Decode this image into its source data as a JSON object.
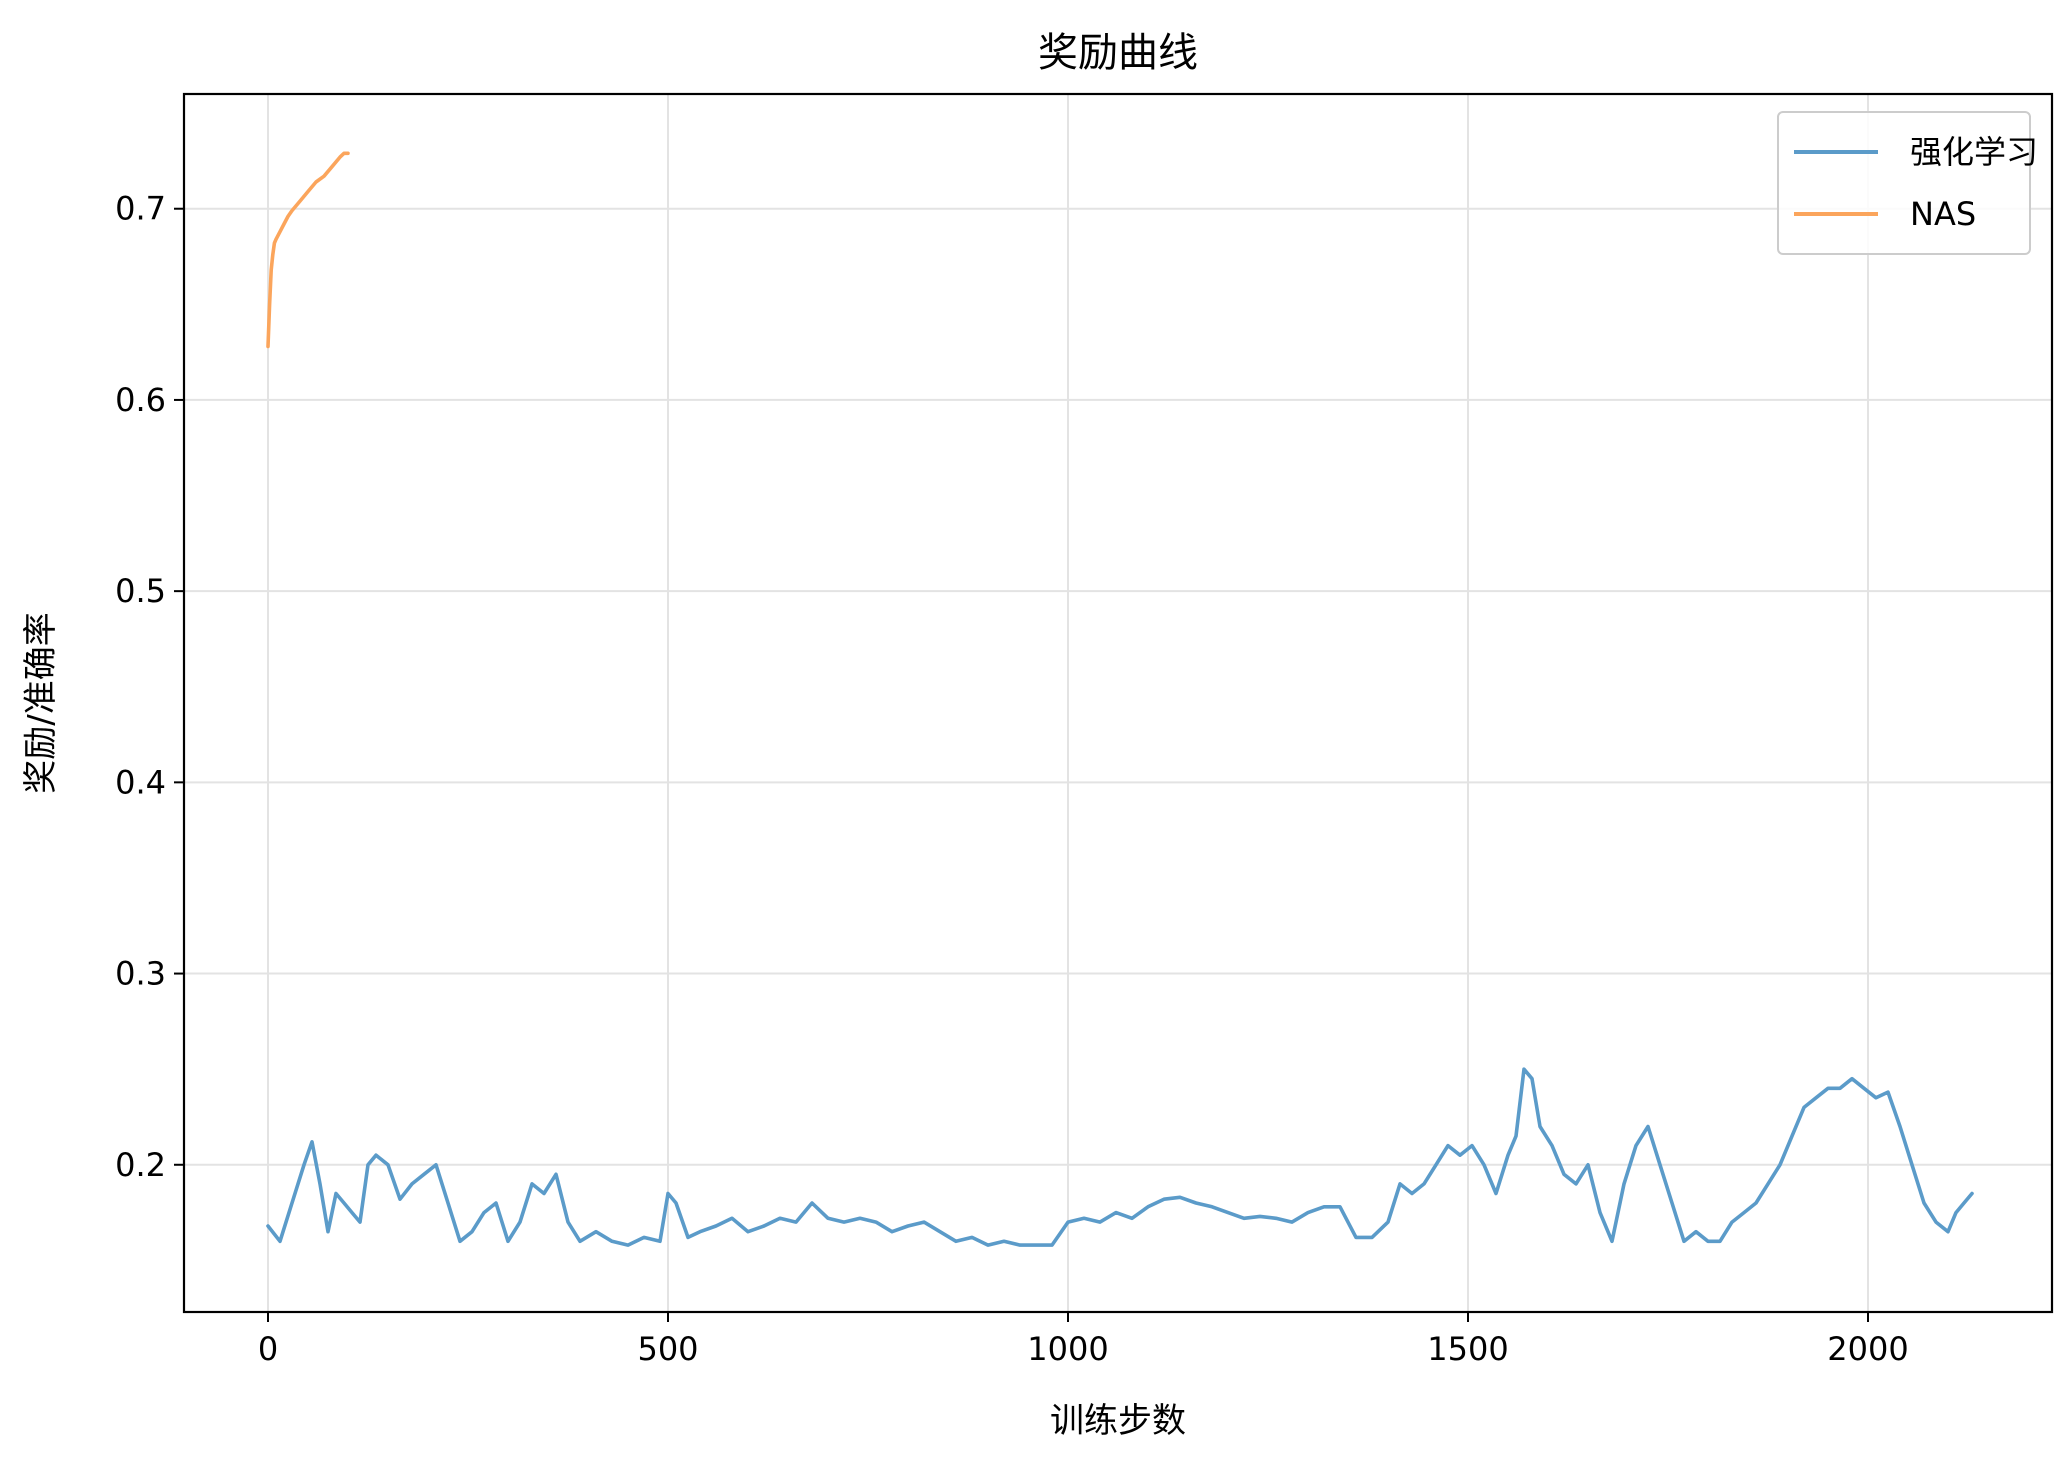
{
  "chart_data": {
    "type": "line",
    "title": "奖励曲线",
    "xlabel": "训练步数",
    "ylabel": "奖励/准确率",
    "xlim": [
      -105,
      2230
    ],
    "ylim": [
      0.123,
      0.76
    ],
    "xticks": [
      0,
      500,
      1000,
      1500,
      2000
    ],
    "xtick_labels": [
      "0",
      "500",
      "1000",
      "1500",
      "2000"
    ],
    "yticks": [
      0.2,
      0.3,
      0.4,
      0.5,
      0.6,
      0.7
    ],
    "ytick_labels": [
      "0.2",
      "0.3",
      "0.4",
      "0.5",
      "0.6",
      "0.7"
    ],
    "grid": true,
    "legend_position": "top-right",
    "series": [
      {
        "name": "强化学习",
        "color": "#5b9bc9",
        "x": [
          0,
          15,
          30,
          45,
          55,
          65,
          75,
          85,
          95,
          105,
          115,
          125,
          135,
          150,
          165,
          180,
          195,
          210,
          225,
          240,
          255,
          270,
          285,
          300,
          315,
          330,
          345,
          360,
          375,
          390,
          410,
          430,
          450,
          470,
          490,
          500,
          510,
          525,
          540,
          560,
          580,
          600,
          620,
          640,
          660,
          680,
          700,
          720,
          740,
          760,
          780,
          800,
          820,
          840,
          860,
          880,
          900,
          920,
          940,
          960,
          980,
          1000,
          1020,
          1040,
          1060,
          1080,
          1100,
          1120,
          1140,
          1160,
          1180,
          1200,
          1220,
          1240,
          1260,
          1280,
          1300,
          1320,
          1340,
          1360,
          1380,
          1400,
          1415,
          1430,
          1445,
          1460,
          1475,
          1490,
          1505,
          1520,
          1535,
          1550,
          1560,
          1570,
          1580,
          1590,
          1605,
          1620,
          1635,
          1650,
          1665,
          1680,
          1695,
          1710,
          1725,
          1740,
          1755,
          1770,
          1785,
          1800,
          1815,
          1830,
          1845,
          1860,
          1875,
          1890,
          1905,
          1920,
          1935,
          1950,
          1965,
          1980,
          1995,
          2010,
          2025,
          2040,
          2055,
          2070,
          2085,
          2100,
          2110,
          2120,
          2130
        ],
        "y": [
          0.168,
          0.16,
          0.18,
          0.2,
          0.212,
          0.19,
          0.165,
          0.185,
          0.18,
          0.175,
          0.17,
          0.2,
          0.205,
          0.2,
          0.182,
          0.19,
          0.195,
          0.2,
          0.18,
          0.16,
          0.165,
          0.175,
          0.18,
          0.16,
          0.17,
          0.19,
          0.185,
          0.195,
          0.17,
          0.16,
          0.165,
          0.16,
          0.158,
          0.162,
          0.16,
          0.185,
          0.18,
          0.162,
          0.165,
          0.168,
          0.172,
          0.165,
          0.168,
          0.172,
          0.17,
          0.18,
          0.172,
          0.17,
          0.172,
          0.17,
          0.165,
          0.168,
          0.17,
          0.165,
          0.16,
          0.162,
          0.158,
          0.16,
          0.158,
          0.158,
          0.158,
          0.17,
          0.172,
          0.17,
          0.175,
          0.172,
          0.178,
          0.182,
          0.183,
          0.18,
          0.178,
          0.175,
          0.172,
          0.173,
          0.172,
          0.17,
          0.175,
          0.178,
          0.178,
          0.162,
          0.162,
          0.17,
          0.19,
          0.185,
          0.19,
          0.2,
          0.21,
          0.205,
          0.21,
          0.2,
          0.185,
          0.205,
          0.215,
          0.25,
          0.245,
          0.22,
          0.21,
          0.195,
          0.19,
          0.2,
          0.175,
          0.16,
          0.19,
          0.21,
          0.22,
          0.2,
          0.18,
          0.16,
          0.165,
          0.16,
          0.16,
          0.17,
          0.175,
          0.18,
          0.19,
          0.2,
          0.215,
          0.23,
          0.235,
          0.24,
          0.24,
          0.245,
          0.24,
          0.235,
          0.238,
          0.22,
          0.2,
          0.18,
          0.17,
          0.165,
          0.175,
          0.18,
          0.185
        ],
        "width": 3.6
      },
      {
        "name": "NAS",
        "color": "#fba55c",
        "x": [
          0,
          2,
          4,
          6,
          8,
          10,
          15,
          20,
          25,
          30,
          40,
          50,
          60,
          70,
          80,
          90,
          95,
          100
        ],
        "y": [
          0.628,
          0.65,
          0.668,
          0.676,
          0.682,
          0.684,
          0.688,
          0.692,
          0.696,
          0.699,
          0.704,
          0.709,
          0.714,
          0.717,
          0.722,
          0.727,
          0.729,
          0.729
        ],
        "width": 3.6
      }
    ]
  }
}
